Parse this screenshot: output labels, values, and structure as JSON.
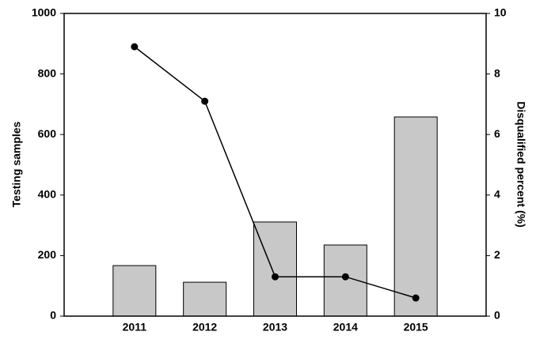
{
  "chart_data": {
    "type": "bar_line",
    "categories": [
      "2011",
      "2012",
      "2013",
      "2014",
      "2015"
    ],
    "series": [
      {
        "type": "bar",
        "color": "#c8c8c8",
        "values": [
          167,
          112,
          311,
          235,
          658
        ]
      },
      {
        "type": "line",
        "color": "#000000",
        "axis": "y2",
        "values": [
          8.9,
          7.1,
          1.3,
          1.3,
          0.6
        ]
      }
    ],
    "y_label": "Testing samples",
    "y2_label": "Disqualified percent (%)",
    "ylim": [
      0,
      1000
    ],
    "yticks": [
      0,
      200,
      400,
      600,
      800,
      1000
    ],
    "y2lim": [
      0,
      10
    ],
    "y2ticks": [
      0,
      2,
      4,
      6,
      8,
      10
    ],
    "grid": false
  }
}
